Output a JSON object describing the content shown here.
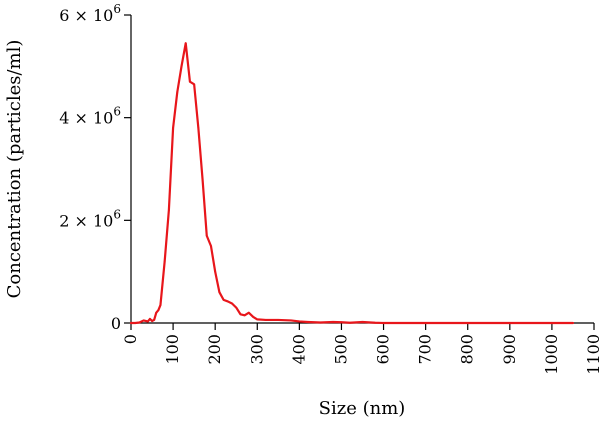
{
  "chart_data": {
    "type": "line",
    "title": "",
    "xlabel": "Size (nm)",
    "ylabel": "Concentration (particles/ml)",
    "xlim": [
      0,
      1100
    ],
    "ylim": [
      0,
      6000000
    ],
    "x_ticks": [
      0,
      100,
      200,
      300,
      400,
      500,
      600,
      700,
      800,
      900,
      1000,
      1100
    ],
    "x_tick_labels": [
      "0",
      "100",
      "200",
      "300",
      "400",
      "500",
      "600",
      "700",
      "800",
      "900",
      "1000",
      "1100"
    ],
    "y_ticks": [
      0,
      2000000,
      4000000,
      6000000
    ],
    "y_tick_labels": [
      {
        "base": "0",
        "exp": ""
      },
      {
        "base": "2 × 10",
        "exp": "6"
      },
      {
        "base": "4 × 10",
        "exp": "6"
      },
      {
        "base": "6 × 10",
        "exp": "6"
      }
    ],
    "grid": false,
    "legend": "none",
    "series": [
      {
        "color": "#e8161b",
        "points": [
          [
            0,
            0
          ],
          [
            10,
            0
          ],
          [
            20,
            10000
          ],
          [
            30,
            50000
          ],
          [
            40,
            30000
          ],
          [
            45,
            80000
          ],
          [
            50,
            40000
          ],
          [
            55,
            60000
          ],
          [
            60,
            200000
          ],
          [
            65,
            250000
          ],
          [
            70,
            350000
          ],
          [
            80,
            1200000
          ],
          [
            90,
            2200000
          ],
          [
            100,
            3800000
          ],
          [
            110,
            4500000
          ],
          [
            120,
            5000000
          ],
          [
            130,
            5450000
          ],
          [
            140,
            4700000
          ],
          [
            150,
            4650000
          ],
          [
            160,
            3800000
          ],
          [
            170,
            2800000
          ],
          [
            180,
            1700000
          ],
          [
            190,
            1500000
          ],
          [
            200,
            1000000
          ],
          [
            210,
            600000
          ],
          [
            220,
            450000
          ],
          [
            230,
            420000
          ],
          [
            240,
            380000
          ],
          [
            250,
            300000
          ],
          [
            260,
            170000
          ],
          [
            270,
            150000
          ],
          [
            280,
            200000
          ],
          [
            290,
            120000
          ],
          [
            300,
            70000
          ],
          [
            320,
            60000
          ],
          [
            350,
            60000
          ],
          [
            380,
            50000
          ],
          [
            400,
            30000
          ],
          [
            420,
            20000
          ],
          [
            450,
            10000
          ],
          [
            480,
            20000
          ],
          [
            500,
            15000
          ],
          [
            520,
            5000
          ],
          [
            550,
            20000
          ],
          [
            580,
            5000
          ],
          [
            600,
            0
          ],
          [
            700,
            0
          ],
          [
            800,
            0
          ],
          [
            900,
            0
          ],
          [
            1000,
            0
          ],
          [
            1050,
            0
          ]
        ]
      }
    ]
  }
}
